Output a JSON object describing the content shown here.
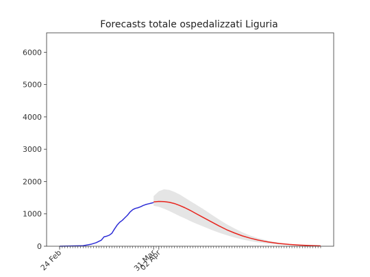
{
  "chart_data": {
    "type": "line",
    "title": "Forecasts totale ospedalizzati Liguria",
    "xlabel": "",
    "ylabel": "",
    "ylim": [
      0,
      6600
    ],
    "y_ticks": [
      0,
      1000,
      2000,
      3000,
      4000,
      5000,
      6000
    ],
    "x_tick_labels": [
      {
        "day": 0,
        "label": "24 Feb"
      },
      {
        "day": 36,
        "label": "31 Mar"
      },
      {
        "day": 38,
        "label": "02 Apr"
      }
    ],
    "x_minor_tick_days": [
      0,
      1,
      2,
      3,
      4,
      5,
      6,
      7,
      8,
      9,
      10,
      11,
      12,
      13,
      14,
      15,
      16,
      17,
      18,
      19,
      20,
      21,
      22,
      23,
      24,
      25,
      26,
      27,
      28,
      29,
      30,
      31,
      32,
      33,
      34,
      35,
      36,
      37,
      38,
      39,
      40,
      41,
      42,
      43,
      44,
      45,
      46,
      47,
      48,
      49,
      50,
      51,
      52,
      53,
      54,
      55,
      56,
      57,
      58,
      59,
      60,
      61,
      62,
      63,
      64,
      65,
      66,
      67,
      68,
      69,
      70,
      71,
      72,
      73,
      74,
      75,
      76,
      77,
      78,
      79,
      80,
      81,
      82,
      83,
      84,
      85,
      86,
      87,
      88,
      89,
      90,
      91,
      92,
      93,
      94,
      95,
      96,
      97,
      98,
      99,
      100
    ],
    "xlim": [
      -5,
      105
    ],
    "series": [
      {
        "color": "#2b2bd6",
        "x": [
          0,
          3,
          6,
          9,
          12,
          14,
          16,
          17,
          18,
          19,
          20,
          21,
          22,
          23,
          24,
          25,
          26,
          27,
          28,
          29,
          30,
          31,
          32,
          33,
          34,
          35,
          36
        ],
        "y": [
          0,
          5,
          10,
          15,
          60,
          110,
          190,
          290,
          310,
          340,
          400,
          530,
          650,
          740,
          800,
          880,
          960,
          1060,
          1130,
          1170,
          1190,
          1220,
          1260,
          1290,
          1310,
          1330,
          1350
        ]
      },
      {
        "color": "#e8231c",
        "x": [
          36,
          38,
          40,
          42,
          44,
          46,
          48,
          50,
          52,
          55,
          58,
          61,
          64,
          67,
          70,
          73,
          76,
          80,
          84,
          88,
          92,
          96,
          100
        ],
        "y": [
          1370,
          1385,
          1380,
          1360,
          1320,
          1260,
          1190,
          1110,
          1020,
          890,
          760,
          630,
          510,
          410,
          320,
          250,
          190,
          130,
          85,
          55,
          35,
          20,
          10
        ]
      }
    ],
    "band": {
      "color": "#e5e5e5",
      "x": [
        36,
        38,
        40,
        42,
        44,
        46,
        48,
        50,
        52,
        55,
        58,
        61,
        64,
        67,
        70,
        73,
        76,
        80,
        84,
        88,
        92,
        96,
        100
      ],
      "upper": [
        1550,
        1700,
        1760,
        1740,
        1680,
        1600,
        1500,
        1400,
        1300,
        1150,
        990,
        830,
        680,
        550,
        430,
        330,
        250,
        170,
        110,
        70,
        45,
        28,
        15
      ],
      "lower": [
        1250,
        1220,
        1160,
        1090,
        1010,
        930,
        860,
        780,
        710,
        610,
        510,
        420,
        340,
        270,
        210,
        160,
        120,
        80,
        52,
        33,
        22,
        12,
        6
      ]
    }
  }
}
